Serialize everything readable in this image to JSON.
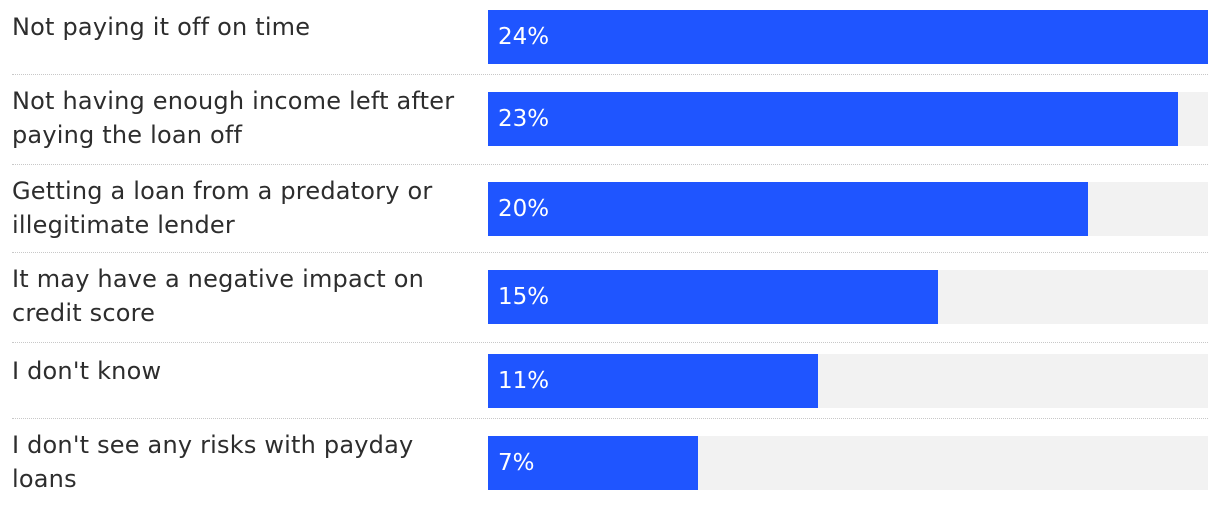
{
  "chart_data": {
    "type": "bar",
    "orientation": "horizontal",
    "categories": [
      "Not paying it off on time",
      "Not having enough income left after paying the loan off",
      "Getting a loan from a predatory or illegitimate lender",
      "It may have a negative impact on credit score",
      "I don't know",
      "I don't see any risks with payday loans"
    ],
    "values": [
      24,
      23,
      20,
      15,
      11,
      7
    ],
    "value_labels": [
      "24%",
      "23%",
      "20%",
      "15%",
      "11%",
      "7%"
    ],
    "xlim": [
      0,
      24
    ],
    "title": "",
    "xlabel": "",
    "ylabel": "",
    "grid": false,
    "colors": {
      "bar": "#1f55ff",
      "track": "#f2f2f2",
      "label": "#2d2d2d",
      "value": "#ffffff",
      "divider": "#c8c8c8"
    }
  }
}
